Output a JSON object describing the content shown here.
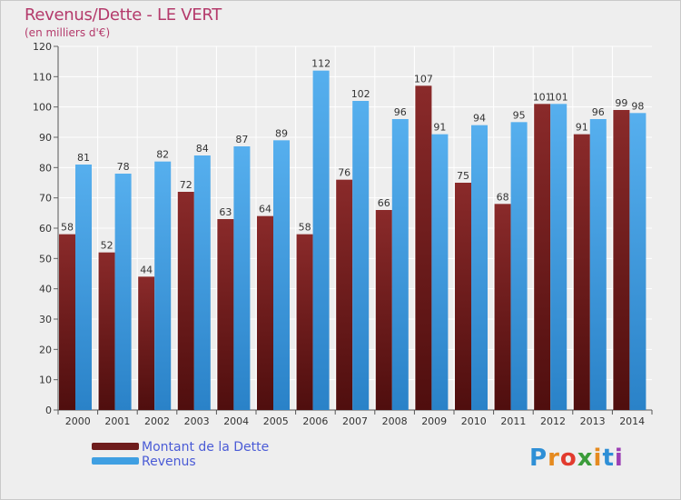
{
  "chart_data": {
    "type": "bar",
    "title": "Revenus/Dette - LE VERT",
    "subtitle": "(en milliers d'€)",
    "categories": [
      "2000",
      "2001",
      "2002",
      "2003",
      "2004",
      "2005",
      "2006",
      "2007",
      "2008",
      "2009",
      "2010",
      "2011",
      "2012",
      "2013",
      "2014"
    ],
    "series": [
      {
        "name": "Montant de la Dette",
        "color": "#6e1c1c",
        "values": [
          58,
          52,
          44,
          72,
          63,
          64,
          58,
          76,
          66,
          107,
          75,
          68,
          101,
          91,
          99
        ]
      },
      {
        "name": "Revenus",
        "color": "#3f9fe2",
        "values": [
          81,
          78,
          82,
          84,
          87,
          89,
          112,
          102,
          96,
          91,
          94,
          95,
          101,
          96,
          98
        ]
      }
    ],
    "ylim": [
      0,
      120
    ],
    "yticks": [
      0,
      10,
      20,
      30,
      40,
      50,
      60,
      70,
      80,
      90,
      100,
      110,
      120
    ],
    "grid": true,
    "legend": "bottom-left"
  },
  "logo": {
    "letters": [
      "P",
      "r",
      "o",
      "x",
      "i",
      "t",
      "i"
    ],
    "colors": [
      "#2e8fd6",
      "#e58a1f",
      "#e23b2e",
      "#3b9c3a",
      "#e58a1f",
      "#2e8fd6",
      "#9c3fb5"
    ]
  }
}
